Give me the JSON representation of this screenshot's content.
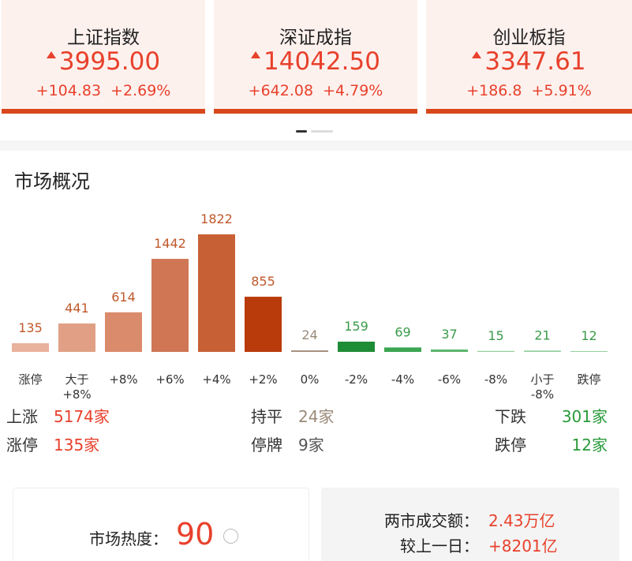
{
  "indices": [
    {
      "name": "上证指数",
      "value": "3995.00",
      "change": "+104.83",
      "change_pct": "+2.69%"
    },
    {
      "name": "深证成指",
      "value": "14042.50",
      "change": "+642.08",
      "change_pct": "+4.79%"
    },
    {
      "name": "创业板指",
      "value": "3347.61",
      "change": "+186.8",
      "change_pct": "+5.91%"
    }
  ],
  "section_title": "市场概况",
  "chart_data": {
    "type": "bar",
    "categories": [
      "涨停",
      "大于\n+8%",
      "+8%",
      "+6%",
      "+4%",
      "+2%",
      "0%",
      "-2%",
      "-4%",
      "-6%",
      "-8%",
      "小于\n-8%",
      "跌停"
    ],
    "values": [
      135,
      441,
      614,
      1442,
      1822,
      855,
      24,
      159,
      69,
      37,
      15,
      21,
      12
    ],
    "colors": [
      "#e9b29c",
      "#e1a086",
      "#da8b6c",
      "#d07654",
      "#c86036",
      "#b93b0b",
      "#a4907e",
      "#1f8c36",
      "#3ba552",
      "#5cb56c",
      "#93d09e",
      "#93d09e",
      "#93d09e"
    ],
    "label_colors": [
      "#c0582a",
      "#c0582a",
      "#c0582a",
      "#c0582a",
      "#c0582a",
      "#c0582a",
      "#9a8a7a",
      "#3a9a4a",
      "#3a9a4a",
      "#3a9a4a",
      "#3a9a4a",
      "#3a9a4a",
      "#3a9a4a"
    ]
  },
  "stats": [
    {
      "label": "上涨",
      "value": "5174家"
    },
    {
      "label": "持平",
      "value": "24家"
    },
    {
      "label": "下跌",
      "value": "301家"
    },
    {
      "label": "涨停",
      "value": "135家"
    },
    {
      "label": "停牌",
      "value": "9家"
    },
    {
      "label": "跌停",
      "value": "12家"
    }
  ],
  "heat": {
    "label": "市场热度：",
    "value": "90"
  },
  "turnover": [
    {
      "label": "两市成交额：",
      "value": "2.43万亿"
    },
    {
      "label": "较上一日：",
      "value": "+8201亿"
    }
  ]
}
